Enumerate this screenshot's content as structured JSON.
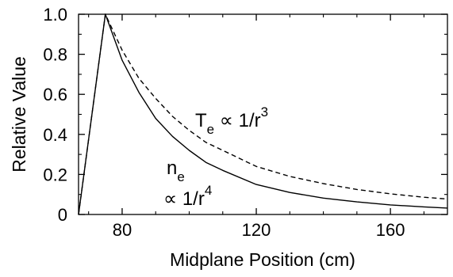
{
  "chart_data": {
    "type": "line",
    "xlabel": "Midplane Position (cm)",
    "ylabel": "Relative Value",
    "xlim": [
      67,
      177
    ],
    "ylim": [
      0,
      1.0
    ],
    "x_ticks": [
      80,
      120,
      160
    ],
    "y_ticks": [
      0,
      0.2,
      0.4,
      0.6,
      0.8,
      1.0
    ],
    "x_tick_labels": [
      "80",
      "120",
      "160"
    ],
    "y_tick_labels": [
      "0",
      "0.2",
      "0.4",
      "0.6",
      "0.8",
      "1.0"
    ],
    "grid": false,
    "series": [
      {
        "style": "dashed",
        "x": [
          67,
          75,
          80,
          85,
          90,
          95,
          100,
          105,
          110,
          120,
          130,
          140,
          150,
          160,
          170,
          177
        ],
        "y": [
          0.0,
          1.0,
          0.82,
          0.68,
          0.58,
          0.49,
          0.42,
          0.36,
          0.32,
          0.24,
          0.19,
          0.154,
          0.125,
          0.103,
          0.086,
          0.077
        ]
      },
      {
        "style": "solid",
        "x": [
          67,
          75,
          80,
          85,
          90,
          95,
          100,
          105,
          110,
          120,
          130,
          140,
          150,
          160,
          170,
          177
        ],
        "y": [
          0.0,
          1.0,
          0.77,
          0.61,
          0.48,
          0.39,
          0.32,
          0.26,
          0.22,
          0.15,
          0.11,
          0.082,
          0.063,
          0.048,
          0.038,
          0.032
        ]
      }
    ],
    "annotations": {
      "te": {
        "main": "T",
        "sub": "e",
        "rest": " ∝ 1/r",
        "sup": "3"
      },
      "ne_name": {
        "main": "n",
        "sub": "e"
      },
      "ne_prop": {
        "rest": "∝ 1/r",
        "sup": "4"
      }
    }
  }
}
